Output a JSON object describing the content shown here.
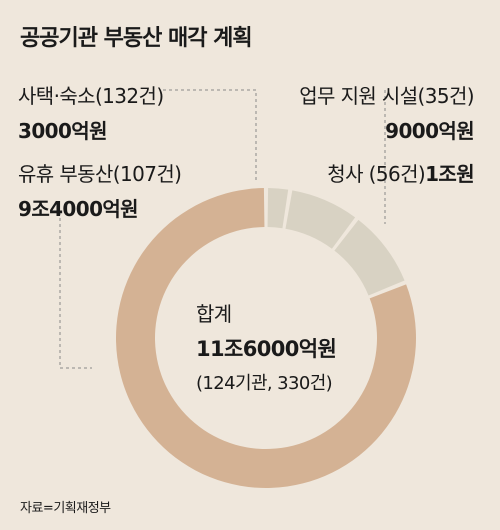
{
  "title": "공공기관 부동산 매각 계획",
  "colors": {
    "idle_property": "#d4b294",
    "others": "#d8d2c3",
    "leader": "#888888",
    "background": "#efe7dc"
  },
  "labels": {
    "housing": {
      "name": "사택·숙소(132건)",
      "value": "3000억원"
    },
    "idle": {
      "name": "유휴 부동산(107건)",
      "value": "9조4000억원"
    },
    "business": {
      "name": "업무 지원 시설(35건)",
      "value": "9000억원"
    },
    "office": {
      "name": "청사 (56건)",
      "value": "1조원"
    }
  },
  "center": {
    "label": "합계",
    "total": "11조6000억원",
    "sub": "(124기관, 330건)"
  },
  "source": "자료=기획재정부",
  "chart_data": {
    "type": "pie",
    "donut": true,
    "unit": "억원",
    "slices": [
      {
        "label": "사택·숙소",
        "count": 132,
        "value": 3000
      },
      {
        "label": "업무 지원 시설",
        "count": 35,
        "value": 9000
      },
      {
        "label": "청사",
        "count": 56,
        "value": 10000
      },
      {
        "label": "유휴 부동산",
        "count": 107,
        "value": 94000
      }
    ],
    "total": 116000,
    "total_institutions": 124,
    "total_count": 330,
    "start_angle": "top, clockwise"
  }
}
